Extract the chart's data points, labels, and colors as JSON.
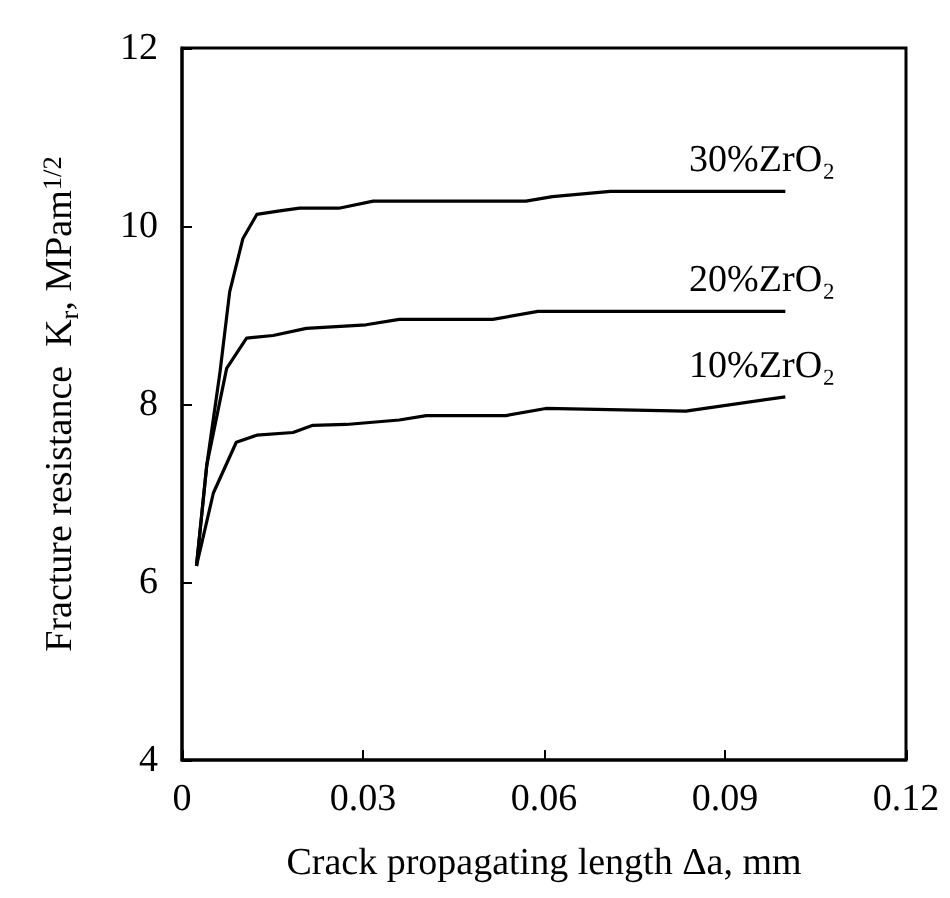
{
  "chart_data": {
    "type": "line",
    "xlabel": "Crack propagating length Δa, mm",
    "ylabel": "Fracture resistance  K$_{r}$, MPam$^{1/2}$",
    "xlim": [
      0,
      0.12
    ],
    "xticks": [
      0,
      0.03,
      0.06,
      0.09,
      0.12
    ],
    "ylim": [
      4,
      12
    ],
    "yticks": [
      4,
      6,
      8,
      10,
      12
    ],
    "grid": false,
    "legend": false,
    "marker": "none",
    "line_style": "solid",
    "series": [
      {
        "name": "30%ZrO₂",
        "color": "#000000",
        "x": [
          0.0024,
          0.0041,
          0.0063,
          0.0079,
          0.0101,
          0.0124,
          0.0162,
          0.0195,
          0.026,
          0.0317,
          0.057,
          0.0614,
          0.071,
          0.1
        ],
        "values": [
          6.18,
          7.31,
          8.36,
          9.26,
          9.86,
          10.13,
          10.17,
          10.2,
          10.2,
          10.28,
          10.28,
          10.33,
          10.39,
          10.39
        ]
      },
      {
        "name": "20%ZrO₂",
        "color": "#000000",
        "x": [
          0.0024,
          0.0041,
          0.0074,
          0.0107,
          0.0151,
          0.0206,
          0.0305,
          0.036,
          0.0515,
          0.059,
          0.1
        ],
        "values": [
          6.18,
          7.31,
          8.4,
          8.74,
          8.77,
          8.85,
          8.89,
          8.95,
          8.95,
          9.04,
          9.04
        ]
      },
      {
        "name": "10%ZrO₂",
        "color": "#000000",
        "x": [
          0.0024,
          0.0052,
          0.009,
          0.0124,
          0.0184,
          0.0217,
          0.0272,
          0.036,
          0.0405,
          0.0537,
          0.0603,
          0.0835,
          0.1
        ],
        "values": [
          6.18,
          7.0,
          7.57,
          7.65,
          7.68,
          7.76,
          7.77,
          7.82,
          7.87,
          7.87,
          7.95,
          7.92,
          8.08
        ]
      }
    ]
  }
}
